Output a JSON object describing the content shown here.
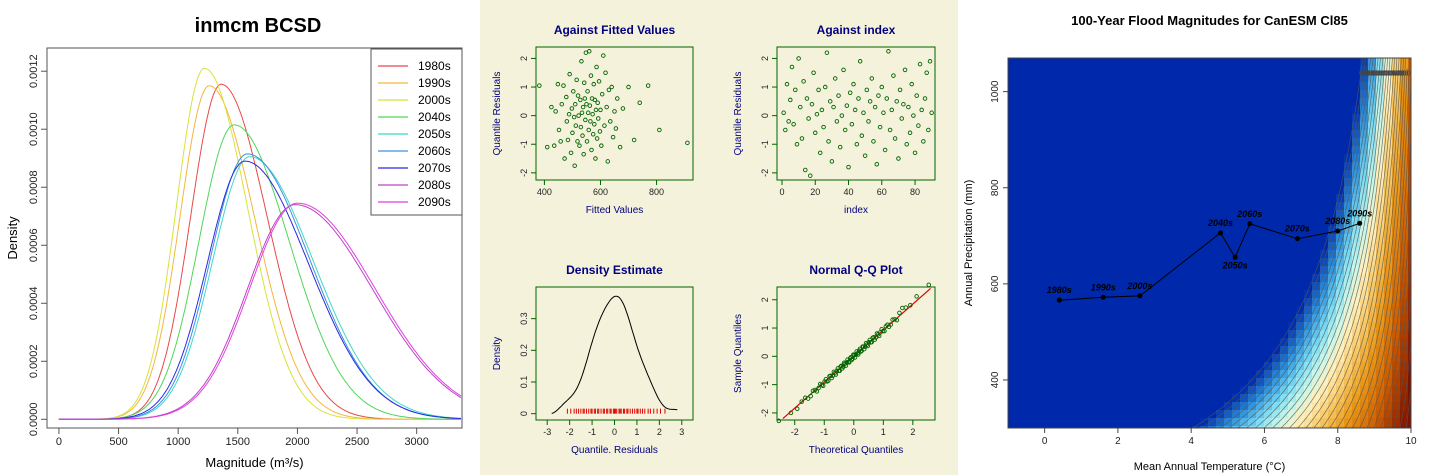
{
  "chart_data": [
    {
      "type": "line",
      "title": "inmcm BCSD",
      "xlabel": "Magnitude (m³/s)",
      "ylabel": "Density",
      "xlim": [
        -100,
        3380
      ],
      "ylim": [
        -3e-05,
        0.00128
      ],
      "xticks": [
        "0",
        "500",
        "1000",
        "1500",
        "2000",
        "2500",
        "3000"
      ],
      "yticks": [
        "0.0000",
        "0.0002",
        "0.0004",
        "0.0006",
        "0.0008",
        "0.0010",
        "0.0012"
      ],
      "legend": "top-right",
      "series": [
        {
          "name": "1980s",
          "color": "#e8484a",
          "mode": 1360,
          "peak": 0.001155,
          "sl": 255,
          "sr": 385
        },
        {
          "name": "1990s",
          "color": "#f5b63f",
          "mode": 1260,
          "peak": 0.00115,
          "sl": 245,
          "sr": 380
        },
        {
          "name": "2000s",
          "color": "#d8e23a",
          "mode": 1220,
          "peak": 0.00121,
          "sl": 235,
          "sr": 360
        },
        {
          "name": "2040s",
          "color": "#4fd65a",
          "mode": 1470,
          "peak": 0.001015,
          "sl": 295,
          "sr": 460
        },
        {
          "name": "2050s",
          "color": "#3fd8c8",
          "mode": 1600,
          "peak": 0.000905,
          "sl": 310,
          "sr": 530
        },
        {
          "name": "2060s",
          "color": "#3f8fe0",
          "mode": 1580,
          "peak": 0.000915,
          "sl": 310,
          "sr": 520
        },
        {
          "name": "2070s",
          "color": "#2a2ae0",
          "mode": 1560,
          "peak": 0.00089,
          "sl": 315,
          "sr": 530
        },
        {
          "name": "2080s",
          "color": "#c040c8",
          "mode": 1980,
          "peak": 0.00074,
          "sl": 400,
          "sr": 650
        },
        {
          "name": "2090s",
          "color": "#e040e0",
          "mode": 2000,
          "peak": 0.000745,
          "sl": 400,
          "sr": 650
        }
      ]
    },
    {
      "type": "scatter",
      "title": "Against Fitted Values",
      "xlabel": "Fitted Values",
      "ylabel": "Quantile Residuals",
      "xlim": [
        370,
        930
      ],
      "ylim": [
        -2.25,
        2.4
      ],
      "xticks": [
        400,
        600,
        800
      ],
      "yticks": [
        -2,
        -1,
        0,
        1,
        2
      ],
      "points": [
        [
          382,
          1.05
        ],
        [
          410,
          -1.1
        ],
        [
          425,
          0.3
        ],
        [
          435,
          -1.05
        ],
        [
          440,
          0.15
        ],
        [
          448,
          1.1
        ],
        [
          452,
          -0.5
        ],
        [
          458,
          -0.9
        ],
        [
          462,
          0.4
        ],
        [
          468,
          1.05
        ],
        [
          472,
          -1.5
        ],
        [
          478,
          0.65
        ],
        [
          480,
          -0.2
        ],
        [
          484,
          -0.85
        ],
        [
          488,
          0.05
        ],
        [
          490,
          1.45
        ],
        [
          495,
          -1.3
        ],
        [
          498,
          0.25
        ],
        [
          500,
          -0.6
        ],
        [
          503,
          0.85
        ],
        [
          506,
          -0.05
        ],
        [
          508,
          -1.75
        ],
        [
          510,
          0.4
        ],
        [
          512,
          -0.35
        ],
        [
          515,
          1.25
        ],
        [
          518,
          -0.9
        ],
        [
          520,
          0.7
        ],
        [
          522,
          0.0
        ],
        [
          525,
          -1.05
        ],
        [
          528,
          0.55
        ],
        [
          530,
          -0.4
        ],
        [
          532,
          1.9
        ],
        [
          534,
          0.1
        ],
        [
          536,
          -0.7
        ],
        [
          538,
          0.3
        ],
        [
          540,
          -1.35
        ],
        [
          542,
          1.15
        ],
        [
          544,
          0.6
        ],
        [
          546,
          -0.15
        ],
        [
          548,
          2.2
        ],
        [
          550,
          0.4
        ],
        [
          552,
          -0.9
        ],
        [
          554,
          0.85
        ],
        [
          556,
          0.1
        ],
        [
          558,
          -0.5
        ],
        [
          560,
          2.25
        ],
        [
          562,
          0.35
        ],
        [
          564,
          -0.2
        ],
        [
          566,
          1.4
        ],
        [
          568,
          -1.2
        ],
        [
          570,
          0.6
        ],
        [
          572,
          0.05
        ],
        [
          574,
          -0.65
        ],
        [
          576,
          1.1
        ],
        [
          578,
          -0.3
        ],
        [
          580,
          0.55
        ],
        [
          582,
          -1.5
        ],
        [
          584,
          0.2
        ],
        [
          586,
          1.7
        ],
        [
          588,
          -0.8
        ],
        [
          590,
          0.45
        ],
        [
          592,
          -0.1
        ],
        [
          595,
          1.2
        ],
        [
          598,
          -0.55
        ],
        [
          600,
          0.2
        ],
        [
          603,
          -1.05
        ],
        [
          606,
          0.75
        ],
        [
          610,
          2.1
        ],
        [
          614,
          -0.35
        ],
        [
          618,
          1.5
        ],
        [
          622,
          0.3
        ],
        [
          626,
          -1.6
        ],
        [
          630,
          0.9
        ],
        [
          635,
          -0.2
        ],
        [
          640,
          1.0
        ],
        [
          645,
          -0.75
        ],
        [
          650,
          0.15
        ],
        [
          655,
          -0.45
        ],
        [
          660,
          0.6
        ],
        [
          670,
          -1.1
        ],
        [
          680,
          0.25
        ],
        [
          700,
          1.0
        ],
        [
          720,
          -0.85
        ],
        [
          740,
          0.45
        ],
        [
          770,
          1.05
        ],
        [
          810,
          -0.5
        ],
        [
          910,
          -0.95
        ]
      ]
    },
    {
      "type": "scatter",
      "title": "Against  index",
      "xlabel": "index",
      "ylabel": "Quantile Residuals",
      "xlim": [
        -3,
        92
      ],
      "ylim": [
        -2.25,
        2.4
      ],
      "xticks": [
        0,
        20,
        40,
        60,
        80
      ],
      "yticks": [
        -2,
        -1,
        0,
        1,
        2
      ],
      "points": [
        [
          1,
          0.1
        ],
        [
          2,
          -0.5
        ],
        [
          3,
          1.1
        ],
        [
          4,
          -0.2
        ],
        [
          5,
          0.55
        ],
        [
          6,
          1.7
        ],
        [
          7,
          -0.3
        ],
        [
          8,
          0.9
        ],
        [
          9,
          -1.0
        ],
        [
          10,
          2.0
        ],
        [
          11,
          0.3
        ],
        [
          12,
          -0.8
        ],
        [
          13,
          1.2
        ],
        [
          14,
          -1.9
        ],
        [
          15,
          0.6
        ],
        [
          16,
          -0.1
        ],
        [
          17,
          -2.1
        ],
        [
          18,
          0.4
        ],
        [
          19,
          1.5
        ],
        [
          20,
          -0.6
        ],
        [
          21,
          0.05
        ],
        [
          22,
          0.9
        ],
        [
          23,
          -1.3
        ],
        [
          24,
          0.2
        ],
        [
          25,
          -0.4
        ],
        [
          26,
          1.0
        ],
        [
          27,
          2.2
        ],
        [
          28,
          -0.9
        ],
        [
          29,
          0.5
        ],
        [
          30,
          -1.6
        ],
        [
          31,
          0.3
        ],
        [
          32,
          1.3
        ],
        [
          33,
          -0.2
        ],
        [
          34,
          0.7
        ],
        [
          35,
          -1.1
        ],
        [
          36,
          0.0
        ],
        [
          37,
          1.6
        ],
        [
          38,
          -0.5
        ],
        [
          39,
          0.35
        ],
        [
          40,
          -1.8
        ],
        [
          41,
          0.8
        ],
        [
          42,
          -0.3
        ],
        [
          43,
          1.1
        ],
        [
          44,
          0.2
        ],
        [
          45,
          -1.0
        ],
        [
          46,
          0.6
        ],
        [
          47,
          1.9
        ],
        [
          48,
          -0.7
        ],
        [
          49,
          0.1
        ],
        [
          50,
          -1.4
        ],
        [
          51,
          0.9
        ],
        [
          52,
          -0.2
        ],
        [
          53,
          0.5
        ],
        [
          54,
          1.3
        ],
        [
          55,
          -0.9
        ],
        [
          56,
          0.3
        ],
        [
          57,
          -1.7
        ],
        [
          58,
          0.7
        ],
        [
          59,
          -0.4
        ],
        [
          60,
          1.0
        ],
        [
          61,
          0.1
        ],
        [
          62,
          -1.2
        ],
        [
          63,
          0.6
        ],
        [
          64,
          2.25
        ],
        [
          65,
          -0.5
        ],
        [
          66,
          0.2
        ],
        [
          67,
          1.4
        ],
        [
          68,
          -0.8
        ],
        [
          69,
          0.5
        ],
        [
          70,
          -1.5
        ],
        [
          71,
          0.9
        ],
        [
          72,
          -0.1
        ],
        [
          73,
          0.4
        ],
        [
          74,
          1.6
        ],
        [
          75,
          -1.0
        ],
        [
          76,
          0.3
        ],
        [
          77,
          -0.6
        ],
        [
          78,
          1.1
        ],
        [
          79,
          0.0
        ],
        [
          80,
          -1.3
        ],
        [
          81,
          0.7
        ],
        [
          82,
          -0.35
        ],
        [
          83,
          1.8
        ],
        [
          84,
          0.2
        ],
        [
          85,
          -0.9
        ],
        [
          86,
          0.6
        ],
        [
          87,
          1.5
        ],
        [
          88,
          -0.5
        ],
        [
          89,
          1.9
        ],
        [
          90,
          0.1
        ]
      ]
    },
    {
      "type": "line",
      "title": "Density Estimate",
      "xlabel": "Quantile. Residuals",
      "ylabel": "Density",
      "xlim": [
        -3.5,
        3.5
      ],
      "ylim": [
        -0.02,
        0.4
      ],
      "xticks": [
        -3,
        -2,
        -1,
        0,
        1,
        2,
        3
      ],
      "yticks": [
        0.0,
        0.1,
        0.2,
        0.3
      ],
      "rug": [
        -2.1,
        -1.95,
        -1.8,
        -1.7,
        -1.6,
        -1.5,
        -1.4,
        -1.35,
        -1.25,
        -1.15,
        -1.05,
        -1.0,
        -0.9,
        -0.85,
        -0.75,
        -0.7,
        -0.6,
        -0.5,
        -0.45,
        -0.35,
        -0.3,
        -0.2,
        -0.15,
        -0.05,
        0.0,
        0.05,
        0.1,
        0.2,
        0.25,
        0.3,
        0.4,
        0.45,
        0.55,
        0.6,
        0.7,
        0.8,
        0.9,
        1.0,
        1.05,
        1.15,
        1.25,
        1.35,
        1.5,
        1.6,
        1.75,
        1.9,
        2.05,
        2.25
      ]
    },
    {
      "type": "scatter",
      "title": "Normal Q-Q Plot",
      "xlabel": "Theoretical Quantiles",
      "ylabel": "Sample Quantiles",
      "xlim": [
        -2.6,
        2.75
      ],
      "ylim": [
        -2.25,
        2.45
      ],
      "xticks": [
        -2,
        -1,
        0,
        1,
        2
      ],
      "yticks": [
        -2,
        -1,
        0,
        1,
        2
      ],
      "n": 90
    },
    {
      "type": "heatmap",
      "title": "100-Year Flood Magnitudes for CanESM Cl85",
      "xlabel": "Mean Annual Temperature (°C)",
      "ylabel": "Annual Precipitation (mm)",
      "xlim": [
        -1,
        10
      ],
      "ylim": [
        300,
        1070
      ],
      "xticks": [
        0,
        2,
        4,
        6,
        8,
        10
      ],
      "yticks": [
        400,
        600,
        800,
        1000
      ],
      "contour_levels": [
        "1800",
        "2000",
        "2200",
        "2400",
        "2600",
        "2800",
        "3000",
        "3200",
        "3400",
        "3600",
        "3800",
        "4000",
        "4200",
        "4400",
        "4600",
        "4800",
        "5000",
        "5200",
        "5400",
        "5600",
        "5800",
        "6000"
      ],
      "trajectory": [
        {
          "label": "1980s",
          "x": 0.4,
          "y": 566
        },
        {
          "label": "1990s",
          "x": 1.6,
          "y": 572
        },
        {
          "label": "2000s",
          "x": 2.6,
          "y": 575
        },
        {
          "label": "2040s",
          "x": 4.8,
          "y": 706
        },
        {
          "label": "2050s",
          "x": 5.2,
          "y": 655
        },
        {
          "label": "2060s",
          "x": 5.6,
          "y": 725
        },
        {
          "label": "2070s",
          "x": 6.9,
          "y": 694
        },
        {
          "label": "2080s",
          "x": 8.0,
          "y": 710
        },
        {
          "label": "2090s",
          "x": 8.6,
          "y": 726
        }
      ]
    }
  ]
}
